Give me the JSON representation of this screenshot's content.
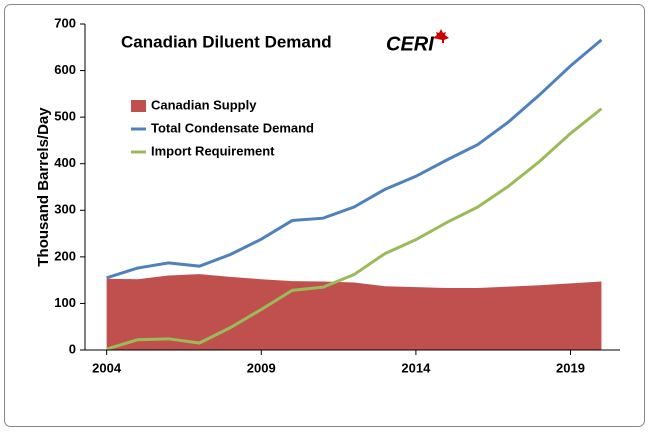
{
  "chart_data": {
    "type": "line",
    "title": "Canadian Diluent Demand",
    "logo": "CERI",
    "y_label": "Thousand Barrels/Day",
    "x": [
      2004,
      2005,
      2006,
      2007,
      2008,
      2009,
      2010,
      2011,
      2012,
      2013,
      2014,
      2015,
      2016,
      2017,
      2018,
      2019,
      2020
    ],
    "series": [
      {
        "name": "Canadian Supply",
        "type": "area",
        "color": "#c0504d",
        "values": [
          153,
          152,
          160,
          163,
          157,
          152,
          148,
          147,
          145,
          137,
          135,
          133,
          133,
          136,
          139,
          143,
          147
        ]
      },
      {
        "name": "Total Condensate Demand",
        "type": "line",
        "color": "#4f81bd",
        "values": [
          155,
          176,
          187,
          180,
          205,
          238,
          278,
          283,
          307,
          345,
          373,
          408,
          441,
          490,
          548,
          610,
          666
        ]
      },
      {
        "name": "Import Requirement",
        "type": "line",
        "color": "#9bbb59",
        "values": [
          2,
          22,
          24,
          15,
          48,
          87,
          128,
          135,
          162,
          207,
          237,
          274,
          307,
          352,
          405,
          465,
          518
        ]
      }
    ],
    "xlim": [
      2003.3,
      2020.6
    ],
    "xticks": [
      2004,
      2009,
      2014,
      2019
    ],
    "ylim": [
      0,
      700
    ],
    "yticks": [
      0,
      100,
      200,
      300,
      400,
      500,
      600,
      700
    ],
    "grid": false,
    "legend": "upper-left"
  }
}
